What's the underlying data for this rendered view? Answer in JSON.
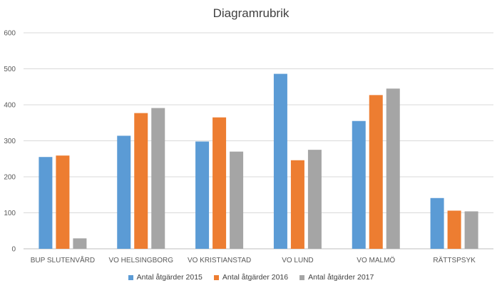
{
  "chart_data": {
    "type": "bar",
    "title": "Diagramrubrik",
    "xlabel": "",
    "ylabel": "",
    "categories": [
      "BUP SLUTENVÅRD",
      "VO HELSINGBORG",
      "VO KRISTIANSTAD",
      "VO LUND",
      "VO MALMÖ",
      "RÄTTSPSYK"
    ],
    "series": [
      {
        "name": "Antal åtgärder 2015",
        "color": "#5B9BD5",
        "values": [
          255,
          314,
          298,
          486,
          355,
          141
        ]
      },
      {
        "name": "Antal åtgärder 2016",
        "color": "#ED7D31",
        "values": [
          259,
          377,
          365,
          246,
          427,
          106
        ]
      },
      {
        "name": "Antal åtgärder 2017",
        "color": "#A5A5A5",
        "values": [
          29,
          391,
          270,
          275,
          445,
          104
        ]
      }
    ],
    "ylim": [
      0,
      600
    ],
    "yticks": [
      0,
      100,
      200,
      300,
      400,
      500,
      600
    ],
    "grid": true,
    "legend_position": "bottom"
  }
}
